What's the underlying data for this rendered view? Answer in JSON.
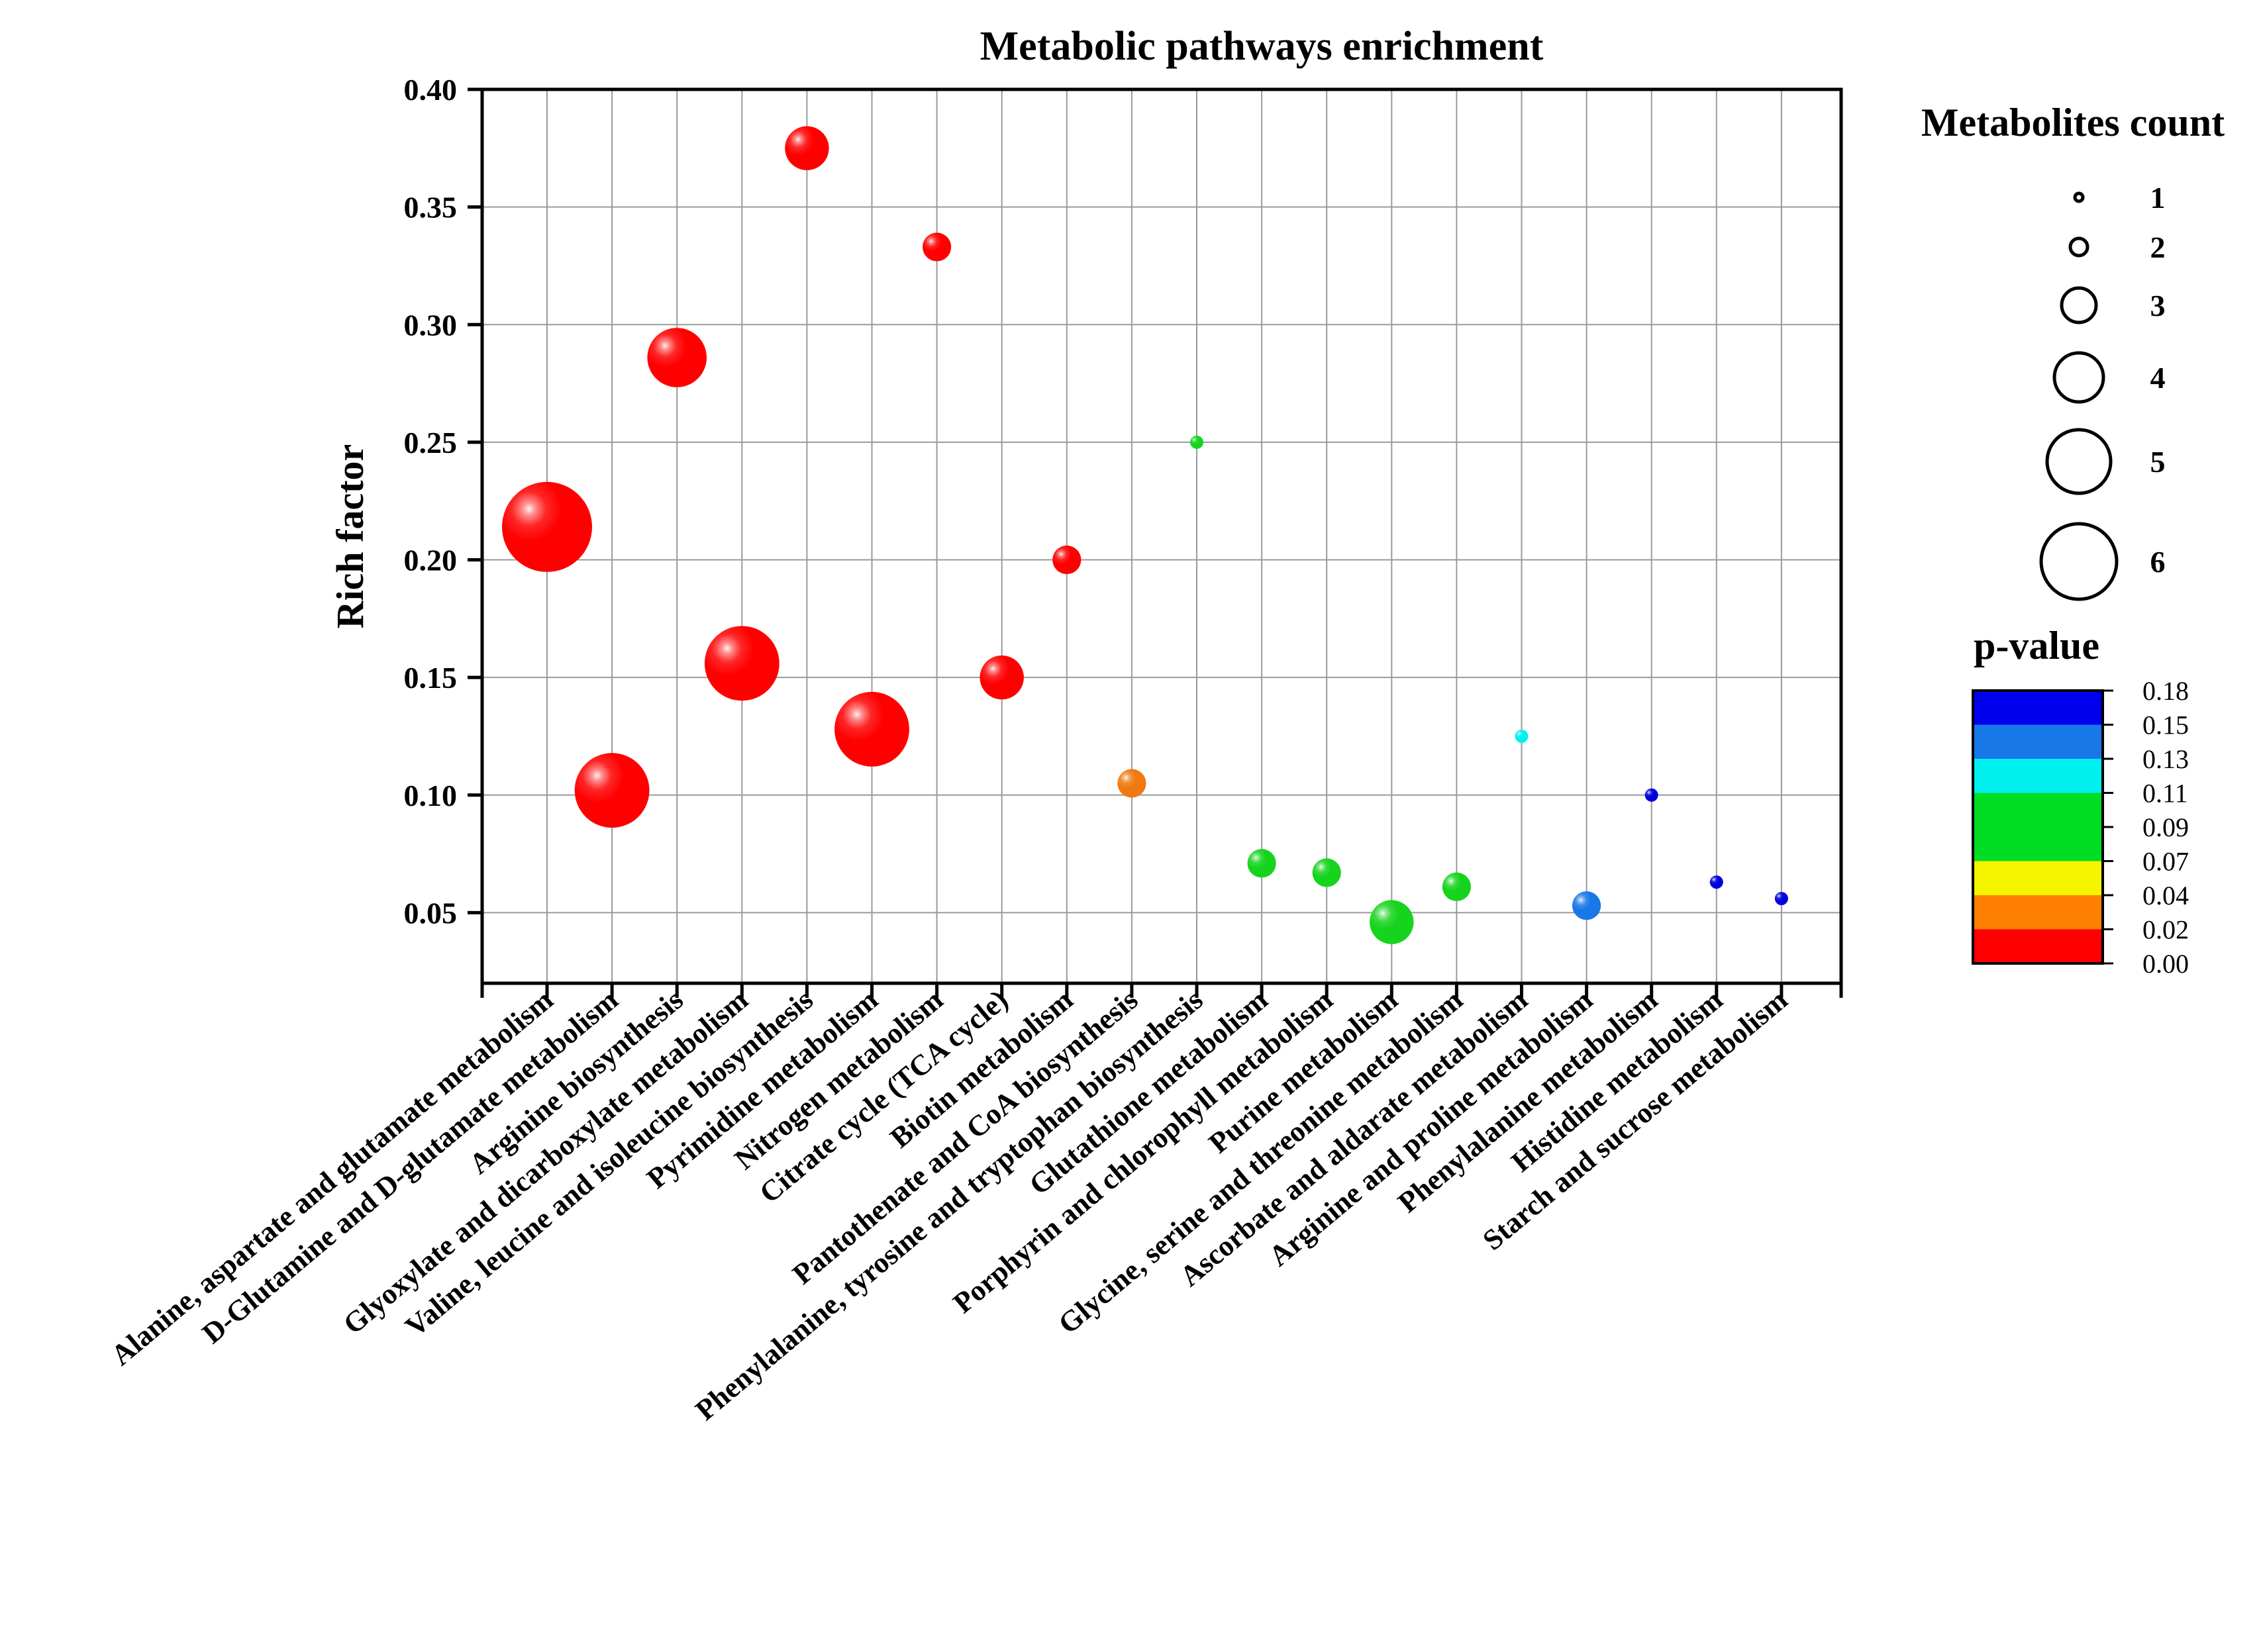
{
  "chart_data": {
    "type": "scatter",
    "subtype": "bubble",
    "title": "Metabolic pathways enrichment",
    "ylabel": "Rich factor",
    "xlabel": "",
    "ylim": [
      0.02,
      0.4
    ],
    "yticks": [
      0.05,
      0.1,
      0.15,
      0.2,
      0.25,
      0.3,
      0.35,
      0.4
    ],
    "grid": true,
    "categories": [
      "Alanine, aspartate and glutamate metabolism",
      "D-Glutamine and D-glutamate metabolism",
      "Arginine biosynthesis",
      "Glyoxylate and dicarboxylate metabolism",
      "Valine, leucine and isoleucine biosynthesis",
      "Pyrimidine metabolism",
      "Nitrogen metabolism",
      "Citrate cycle (TCA cycle)",
      "Biotin metabolism",
      "Pantothenate and CoA biosynthesis",
      "Phenylalanine, tyrosine and tryptophan biosynthesis",
      "Glutathione metabolism",
      "Porphyrin and chlorophyll metabolism",
      "Purine metabolism",
      "Glycine, serine and threonine metabolism",
      "Ascorbate and aldarate metabolism",
      "Arginine and proline metabolism",
      "Phenylalanine metabolism",
      "Histidine metabolism",
      "Starch and sucrose metabolism"
    ],
    "rich_factor": [
      0.214,
      0.102,
      0.286,
      0.156,
      0.375,
      0.128,
      0.333,
      0.15,
      0.2,
      0.105,
      0.25,
      0.071,
      0.067,
      0.046,
      0.061,
      0.125,
      0.053,
      0.1,
      0.063,
      0.056
    ],
    "count": [
      6,
      5,
      4,
      5,
      3,
      5,
      2,
      3,
      2,
      2,
      1,
      2,
      2,
      3,
      2,
      1,
      2,
      1,
      1,
      1
    ],
    "p_value": [
      0.001,
      0.002,
      0.003,
      0.004,
      0.005,
      0.006,
      0.007,
      0.008,
      0.009,
      0.03,
      0.075,
      0.08,
      0.082,
      0.085,
      0.088,
      0.115,
      0.14,
      0.17,
      0.172,
      0.175
    ],
    "size_legend": {
      "title": "Metabolites count",
      "values": [
        "1",
        "2",
        "3",
        "4",
        "5",
        "6"
      ]
    },
    "color_legend": {
      "title": "p-value",
      "ticks": [
        "0.18",
        "0.15",
        "0.13",
        "0.11",
        "0.09",
        "0.07",
        "0.04",
        "0.02",
        "0.00"
      ],
      "colors": [
        "#0000ee",
        "#1878e8",
        "#00f0f0",
        "#00dd22",
        "#00dd22",
        "#f5f500",
        "#ff7f00",
        "#ff0000"
      ]
    }
  }
}
